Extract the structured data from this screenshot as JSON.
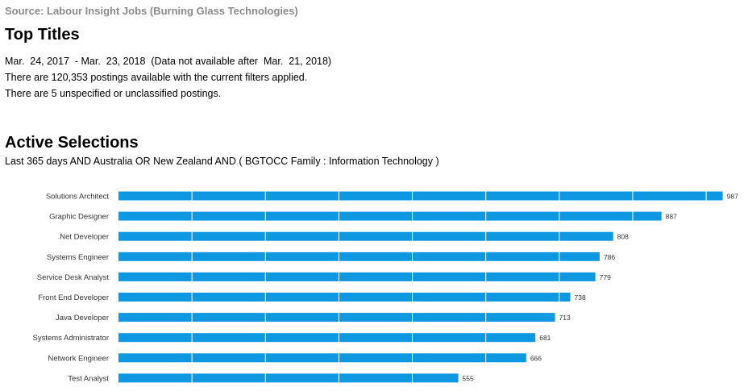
{
  "header": {
    "source": "Source: Labour Insight Jobs (Burning Glass Technologies)",
    "title": "Top Titles",
    "date_range": "Mar.  24, 2017  - Mar.  23, 2018  (Data not available after  Mar.  21, 2018)",
    "postings": "There are 120,353 postings available with the current filters applied.",
    "unspecified": "There are 5 unspecified or unclassified postings."
  },
  "selections": {
    "title": "Active Selections",
    "text": "Last 365 days AND Australia OR New Zealand AND ( BGTOCC Family : Information Technology )"
  },
  "colors": {
    "bar": "#0f98e2"
  },
  "chart_data": {
    "type": "bar",
    "orientation": "horizontal",
    "categories": [
      "Solutions Architect",
      "Graphic Designer",
      ".Net Developer",
      "Systems Engineer",
      "Service Desk Analyst",
      "Front End Developer",
      "Java Developer",
      "Systems Administrator",
      "Network Engineer",
      "Test Analyst"
    ],
    "values": [
      987,
      887,
      808,
      786,
      779,
      738,
      713,
      681,
      666,
      555
    ],
    "xlim": [
      0,
      1000
    ],
    "grid": true
  }
}
